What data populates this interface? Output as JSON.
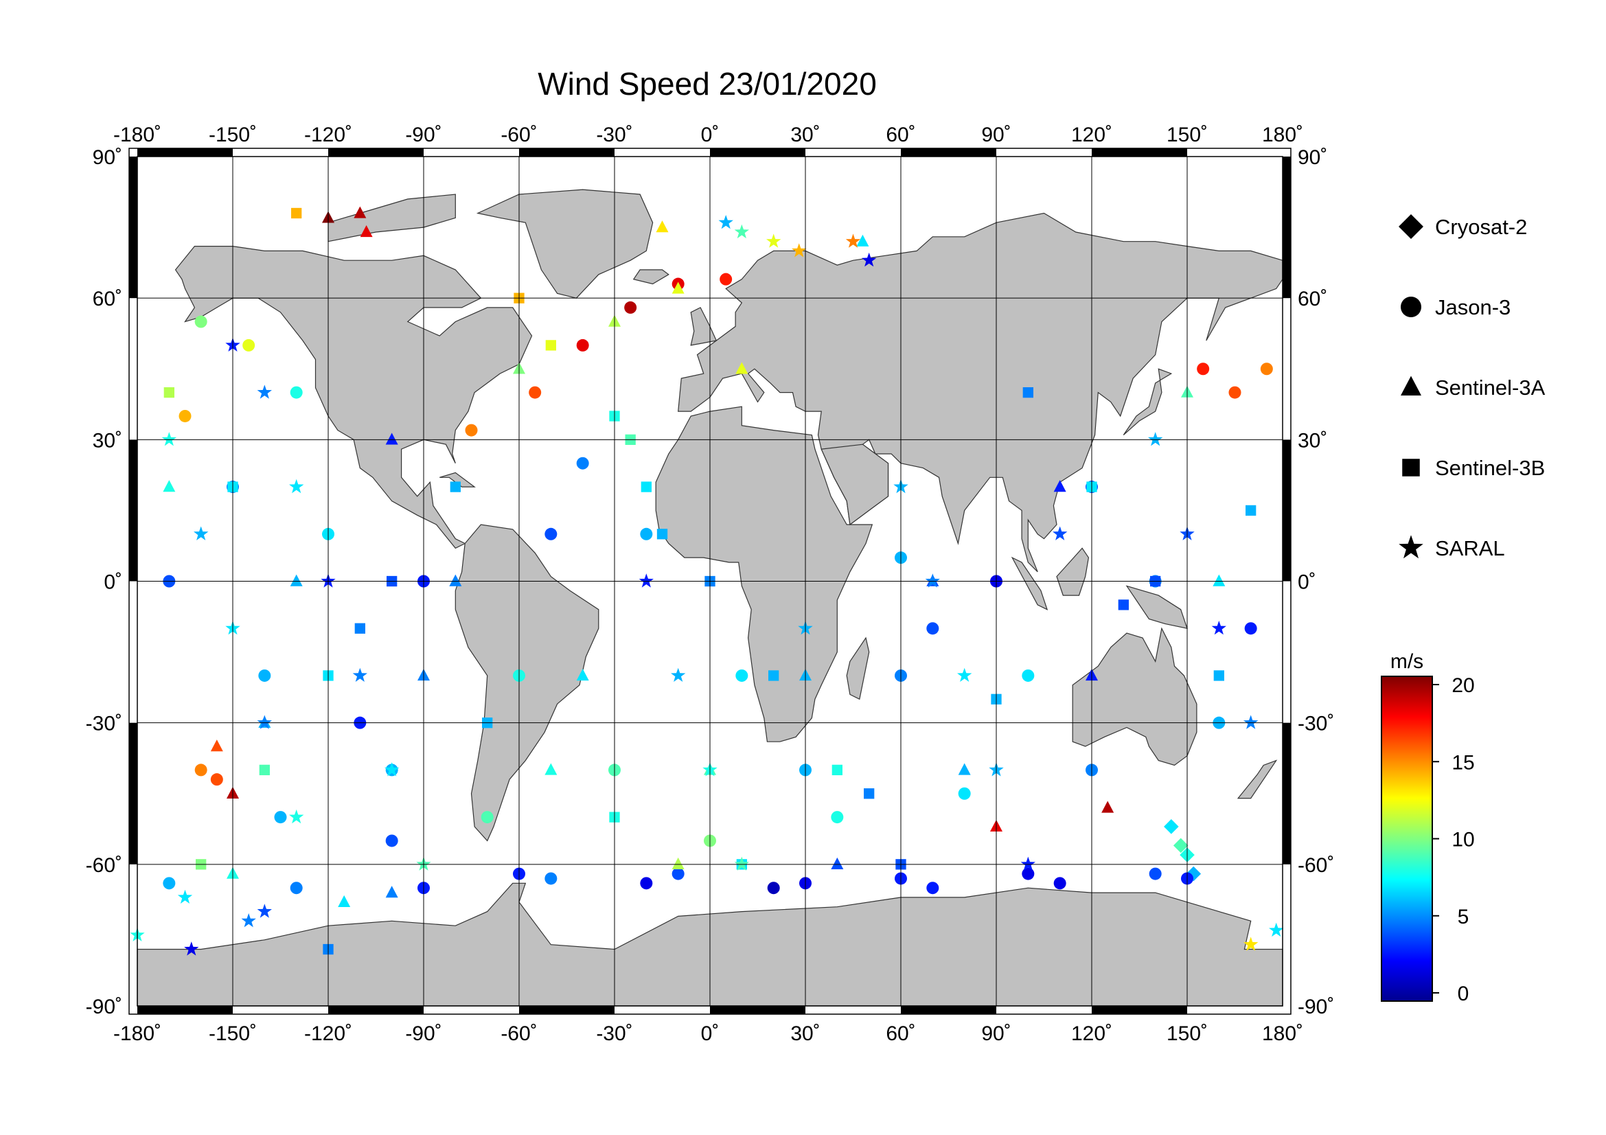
{
  "title": "Wind Speed 23/01/2020",
  "map": {
    "lon_ticks": [
      "-180˚",
      "-150˚",
      "-120˚",
      "-90˚",
      "-60˚",
      "-30˚",
      "0˚",
      "30˚",
      "60˚",
      "90˚",
      "120˚",
      "150˚",
      "180˚"
    ],
    "lat_ticks": [
      "90˚",
      "60˚",
      "30˚",
      "0˚",
      "-30˚",
      "-60˚",
      "-90˚"
    ],
    "land_color": "#c0c0c0",
    "ocean_color": "#ffffff"
  },
  "legend": {
    "items": [
      {
        "label": "Cryosat-2",
        "symbol": "diamond"
      },
      {
        "label": "Jason-3",
        "symbol": "circle"
      },
      {
        "label": "Sentinel-3A",
        "symbol": "triangle"
      },
      {
        "label": "Sentinel-3B",
        "symbol": "square"
      },
      {
        "label": "SARAL",
        "symbol": "star"
      }
    ]
  },
  "colorbar": {
    "unit": "m/s",
    "ticks": [
      "20",
      "15",
      "10",
      "5",
      "0"
    ],
    "stops": [
      "#00008f",
      "#0000ff",
      "#0080ff",
      "#00ffff",
      "#80ff80",
      "#ffff00",
      "#ff8000",
      "#ff0000",
      "#800000"
    ]
  },
  "chart_data": {
    "type": "scatter",
    "title": "Wind Speed 23/01/2020",
    "xlim": [
      -180,
      180
    ],
    "ylim": [
      -90,
      90
    ],
    "value_unit": "m/s",
    "value_range": [
      0,
      20
    ],
    "series": [
      {
        "name": "Cryosat-2",
        "points": [
          [
            150,
            -58,
            8
          ],
          [
            152,
            -62,
            6
          ],
          [
            148,
            -56,
            9
          ],
          [
            145,
            -52,
            7
          ]
        ]
      },
      {
        "name": "Jason-3",
        "points": [
          [
            -55,
            40,
            16
          ],
          [
            -40,
            50,
            18
          ],
          [
            -25,
            58,
            19
          ],
          [
            -10,
            63,
            18
          ],
          [
            5,
            64,
            17
          ],
          [
            -75,
            32,
            15
          ],
          [
            155,
            45,
            17
          ],
          [
            165,
            40,
            16
          ],
          [
            175,
            45,
            15
          ],
          [
            -165,
            35,
            14
          ],
          [
            -160,
            -40,
            15
          ],
          [
            -155,
            -42,
            16
          ],
          [
            -135,
            -50,
            6
          ],
          [
            -100,
            -55,
            4
          ],
          [
            -60,
            -62,
            3
          ],
          [
            -20,
            -64,
            2
          ],
          [
            20,
            -65,
            1
          ],
          [
            60,
            -63,
            3
          ],
          [
            100,
            -62,
            2
          ],
          [
            140,
            -62,
            4
          ],
          [
            -170,
            -64,
            6
          ],
          [
            -130,
            -65,
            5
          ],
          [
            -90,
            -65,
            3
          ],
          [
            -50,
            -63,
            5
          ],
          [
            -10,
            -62,
            4
          ],
          [
            30,
            -64,
            2
          ],
          [
            70,
            -65,
            3
          ],
          [
            110,
            -64,
            2
          ],
          [
            150,
            -63,
            3
          ],
          [
            -150,
            20,
            5
          ],
          [
            -120,
            10,
            7
          ],
          [
            -90,
            0,
            3
          ],
          [
            -60,
            -20,
            8
          ],
          [
            -30,
            -40,
            9
          ],
          [
            0,
            -55,
            10
          ],
          [
            30,
            -40,
            6
          ],
          [
            60,
            -20,
            5
          ],
          [
            90,
            0,
            2
          ],
          [
            120,
            20,
            4
          ],
          [
            -100,
            -40,
            6
          ],
          [
            -70,
            -50,
            9
          ],
          [
            40,
            -50,
            8
          ],
          [
            80,
            -45,
            7
          ],
          [
            120,
            -40,
            5
          ],
          [
            160,
            -30,
            6
          ],
          [
            -170,
            0,
            4
          ],
          [
            -140,
            -20,
            6
          ],
          [
            -110,
            -30,
            3
          ],
          [
            10,
            -20,
            7
          ],
          [
            -20,
            10,
            6
          ],
          [
            -40,
            25,
            5
          ],
          [
            -50,
            10,
            4
          ],
          [
            170,
            -10,
            3
          ],
          [
            140,
            0,
            5
          ],
          [
            100,
            -20,
            7
          ],
          [
            60,
            5,
            6
          ],
          [
            70,
            -10,
            4
          ],
          [
            -130,
            40,
            8
          ],
          [
            -160,
            55,
            10
          ],
          [
            -145,
            50,
            12
          ]
        ]
      },
      {
        "name": "Sentinel-3A",
        "points": [
          [
            -120,
            77,
            20
          ],
          [
            -110,
            78,
            19
          ],
          [
            -108,
            74,
            18
          ],
          [
            -10,
            62,
            12
          ],
          [
            -15,
            75,
            13
          ],
          [
            48,
            72,
            7
          ],
          [
            -155,
            -35,
            16
          ],
          [
            -150,
            -45,
            19
          ],
          [
            90,
            -52,
            18
          ],
          [
            125,
            -48,
            19
          ],
          [
            -100,
            30,
            3
          ],
          [
            -80,
            0,
            5
          ],
          [
            -40,
            -20,
            7
          ],
          [
            0,
            -40,
            9
          ],
          [
            40,
            -60,
            4
          ],
          [
            80,
            -40,
            6
          ],
          [
            120,
            -20,
            3
          ],
          [
            160,
            0,
            7
          ],
          [
            -140,
            -30,
            6
          ],
          [
            -170,
            20,
            8
          ],
          [
            -130,
            0,
            6
          ],
          [
            -90,
            -20,
            5
          ],
          [
            -50,
            -40,
            8
          ],
          [
            -10,
            -60,
            11
          ],
          [
            30,
            -20,
            6
          ],
          [
            70,
            0,
            4
          ],
          [
            110,
            20,
            3
          ],
          [
            150,
            40,
            9
          ],
          [
            -60,
            45,
            10
          ],
          [
            -30,
            55,
            11
          ],
          [
            10,
            45,
            12
          ],
          [
            -150,
            -62,
            8
          ],
          [
            -115,
            -68,
            7
          ],
          [
            -100,
            -66,
            5
          ]
        ]
      },
      {
        "name": "Sentinel-3B",
        "points": [
          [
            -130,
            78,
            14
          ],
          [
            -30,
            35,
            8
          ],
          [
            -25,
            30,
            9
          ],
          [
            -15,
            10,
            6
          ],
          [
            -120,
            -78,
            5
          ],
          [
            -60,
            60,
            14
          ],
          [
            -50,
            50,
            12
          ],
          [
            -20,
            20,
            7
          ],
          [
            0,
            0,
            5
          ],
          [
            20,
            -20,
            6
          ],
          [
            40,
            -40,
            8
          ],
          [
            60,
            -60,
            4
          ],
          [
            -80,
            20,
            6
          ],
          [
            -100,
            0,
            4
          ],
          [
            -120,
            -20,
            7
          ],
          [
            -140,
            -40,
            9
          ],
          [
            -160,
            -60,
            10
          ],
          [
            100,
            40,
            5
          ],
          [
            120,
            20,
            7
          ],
          [
            140,
            0,
            4
          ],
          [
            160,
            -20,
            6
          ],
          [
            -170,
            40,
            11
          ],
          [
            -150,
            20,
            7
          ],
          [
            -110,
            -10,
            5
          ],
          [
            -70,
            -30,
            6
          ],
          [
            -30,
            -50,
            8
          ],
          [
            10,
            -60,
            7
          ],
          [
            50,
            -45,
            5
          ],
          [
            90,
            -25,
            6
          ],
          [
            130,
            -5,
            4
          ],
          [
            170,
            15,
            6
          ]
        ]
      },
      {
        "name": "SARAL",
        "points": [
          [
            5,
            76,
            6
          ],
          [
            10,
            74,
            9
          ],
          [
            20,
            72,
            12
          ],
          [
            28,
            70,
            14
          ],
          [
            45,
            72,
            15
          ],
          [
            50,
            68,
            2
          ],
          [
            -180,
            -75,
            8
          ],
          [
            -163,
            -78,
            2
          ],
          [
            -145,
            -72,
            5
          ],
          [
            -140,
            -70,
            4
          ],
          [
            170,
            -77,
            13
          ],
          [
            178,
            -74,
            7
          ],
          [
            -165,
            -67,
            7
          ],
          [
            -150,
            50,
            3
          ],
          [
            -140,
            40,
            5
          ],
          [
            -130,
            20,
            7
          ],
          [
            -120,
            0,
            3
          ],
          [
            -110,
            -20,
            5
          ],
          [
            -100,
            -40,
            7
          ],
          [
            -90,
            -60,
            9
          ],
          [
            -170,
            30,
            8
          ],
          [
            -160,
            10,
            6
          ],
          [
            -150,
            -10,
            7
          ],
          [
            -140,
            -30,
            5
          ],
          [
            -130,
            -50,
            8
          ],
          [
            60,
            20,
            6
          ],
          [
            70,
            0,
            5
          ],
          [
            80,
            -20,
            7
          ],
          [
            90,
            -40,
            6
          ],
          [
            100,
            -60,
            3
          ],
          [
            -20,
            0,
            3
          ],
          [
            -10,
            -20,
            6
          ],
          [
            0,
            -40,
            8
          ],
          [
            10,
            -60,
            9
          ],
          [
            140,
            30,
            6
          ],
          [
            150,
            10,
            4
          ],
          [
            160,
            -10,
            3
          ],
          [
            170,
            -30,
            5
          ],
          [
            110,
            10,
            4
          ],
          [
            30,
            -10,
            6
          ]
        ]
      }
    ]
  }
}
